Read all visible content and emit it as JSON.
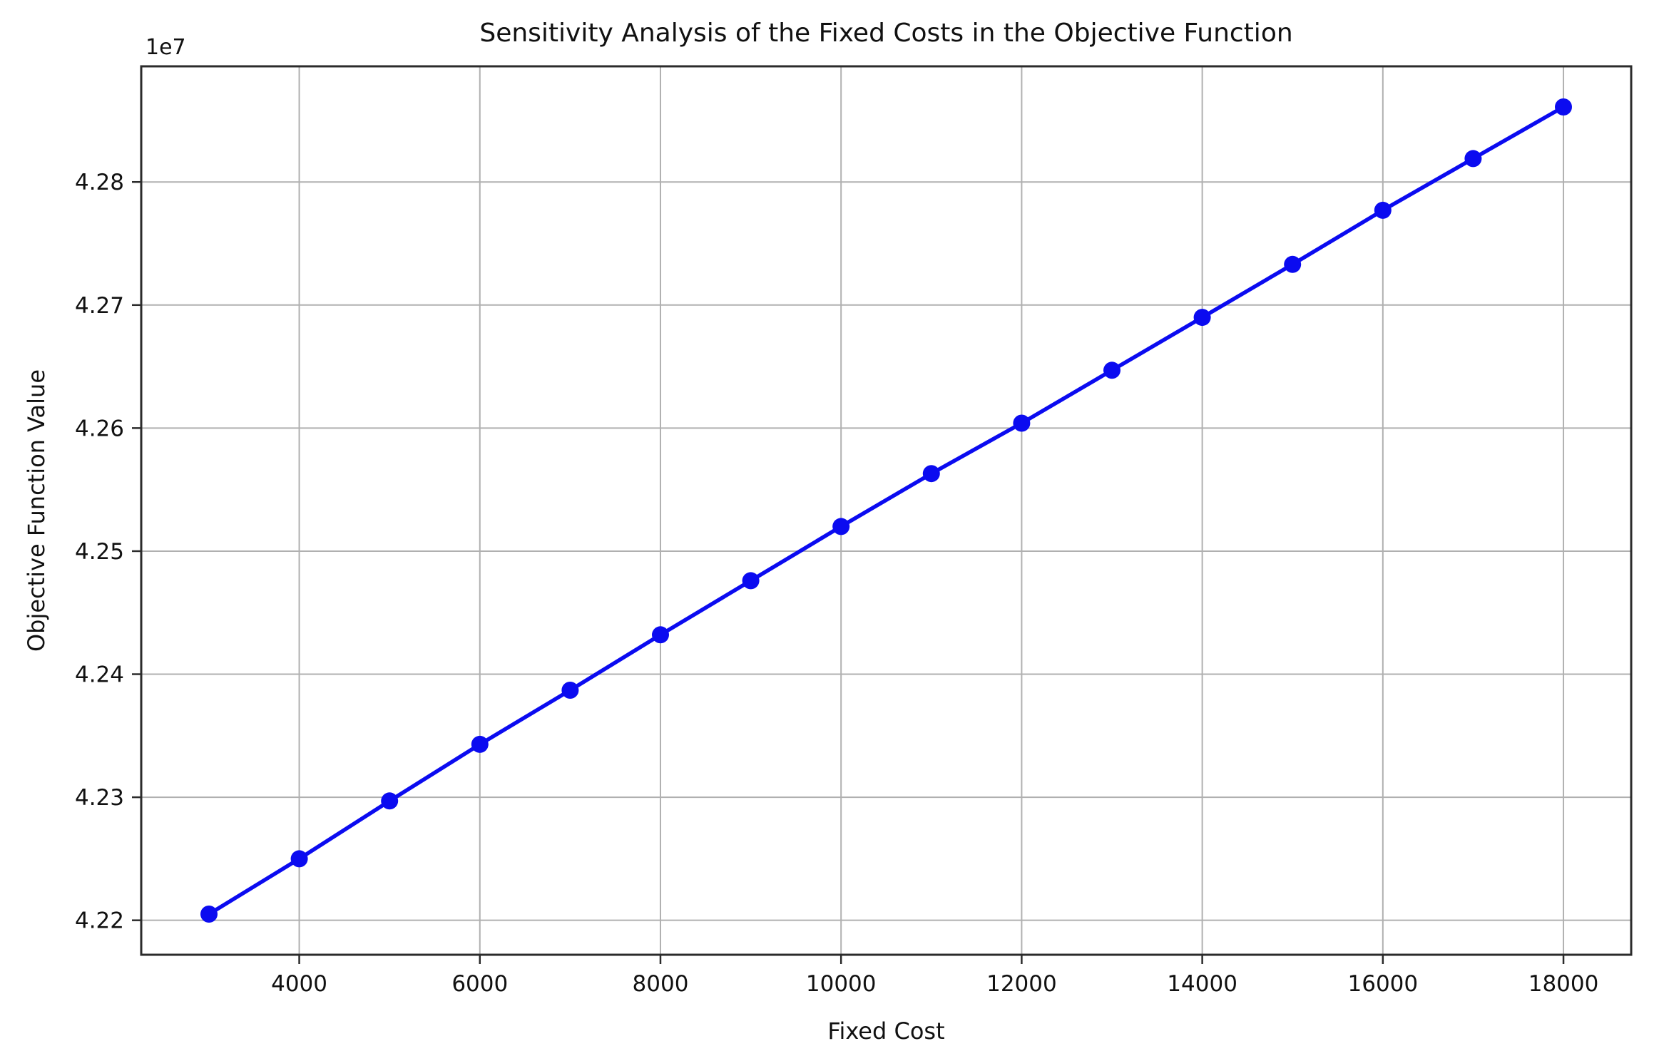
{
  "colors": {
    "line": "#0b0bf0",
    "marker": "#0b0bf0",
    "grid": "#b0b0b0",
    "spine": "#2b2b2b",
    "text": "#111111",
    "background": "#ffffff"
  },
  "chart_data": {
    "type": "line",
    "title": "Sensitivity Analysis of the Fixed Costs in the Objective Function",
    "xlabel": "Fixed Cost",
    "ylabel": "Objective Function Value",
    "y_axis_offset_label": "1e7",
    "x": [
      3000,
      4000,
      5000,
      6000,
      7000,
      8000,
      9000,
      10000,
      11000,
      12000,
      13000,
      14000,
      15000,
      16000,
      17000,
      18000
    ],
    "y": [
      42205000,
      42250000,
      42297000,
      42343000,
      42387000,
      42432000,
      42476000,
      42520000,
      42563000,
      42604000,
      42647000,
      42690000,
      42733000,
      42777000,
      42819000,
      42861000
    ],
    "xlim": [
      2250,
      18750
    ],
    "ylim": [
      42172000,
      42894000
    ],
    "xticks": [
      4000,
      6000,
      8000,
      10000,
      12000,
      14000,
      16000,
      18000
    ],
    "yticks": [
      42200000,
      42300000,
      42400000,
      42500000,
      42600000,
      42700000,
      42800000
    ],
    "ytick_labels": [
      "4.22",
      "4.23",
      "4.24",
      "4.25",
      "4.26",
      "4.27",
      "4.28"
    ],
    "grid": true,
    "legend_position": "none",
    "marker": "o",
    "line_style": "solid"
  }
}
